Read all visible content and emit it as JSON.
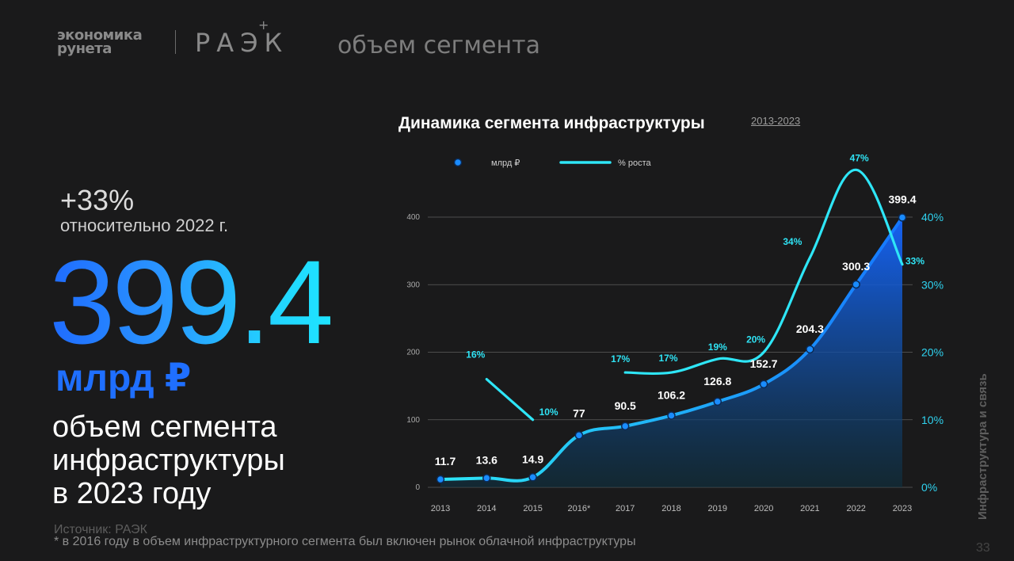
{
  "header": {
    "logo_line1": "экономика",
    "logo_line2": "рунета",
    "logo_raek": "РАЭК",
    "logo_plus": "+",
    "title": "объем сегмента"
  },
  "summary": {
    "growth_pct": "+33%",
    "growth_note": "относительно 2022 г.",
    "big_value": "399.4",
    "big_unit": "млрд ₽",
    "desc_lines": [
      "объем сегмента",
      "инфраструктуры",
      "в 2023 году"
    ]
  },
  "footer": {
    "source": "Источник: РАЭК",
    "footnote": "* в 2016 году в объем инфраструктурного сегмента был включен рынок облачной инфраструктуры",
    "side_label": "Инфраструктура и связь",
    "page_number": "33"
  },
  "colors": {
    "background": "#1a1a1b",
    "value_line": "#1a8cff",
    "growth_line": "#2ee6f7",
    "area_top": "#1466ff",
    "area_bottom": "#0e3a55"
  },
  "chart_data": {
    "type": "area",
    "title": "Динамика сегмента инфраструктуры",
    "subtitle": "2013-2023",
    "categories": [
      "2013",
      "2014",
      "2015",
      "2016*",
      "2017",
      "2018",
      "2019",
      "2020",
      "2021",
      "2022",
      "2023"
    ],
    "series": [
      {
        "name": "млрд ₽",
        "axis": "left",
        "values": [
          11.7,
          13.6,
          14.9,
          77,
          90.5,
          106.2,
          126.8,
          152.7,
          204.3,
          300.3,
          399.4
        ],
        "labels": [
          "11.7",
          "13.6",
          "14.9",
          "77",
          "90.5",
          "106.2",
          "126.8",
          "152.7",
          "204.3",
          "300.3",
          "399.4"
        ]
      },
      {
        "name": "% роста",
        "axis": "right",
        "values": [
          null,
          16,
          10,
          null,
          17,
          17,
          19,
          20,
          34,
          47,
          33
        ],
        "labels": [
          null,
          "16%",
          "10%",
          null,
          "17%",
          "17%",
          "19%",
          "20%",
          "34%",
          "47%",
          "33%"
        ]
      }
    ],
    "y_left": {
      "ticks": [
        0,
        100,
        200,
        300,
        400
      ],
      "range": [
        0,
        400
      ]
    },
    "y_right": {
      "ticks": [
        "0%",
        "10%",
        "20%",
        "30%",
        "40%"
      ],
      "range": [
        0,
        40
      ]
    },
    "grid": true,
    "legend": "top-left"
  }
}
